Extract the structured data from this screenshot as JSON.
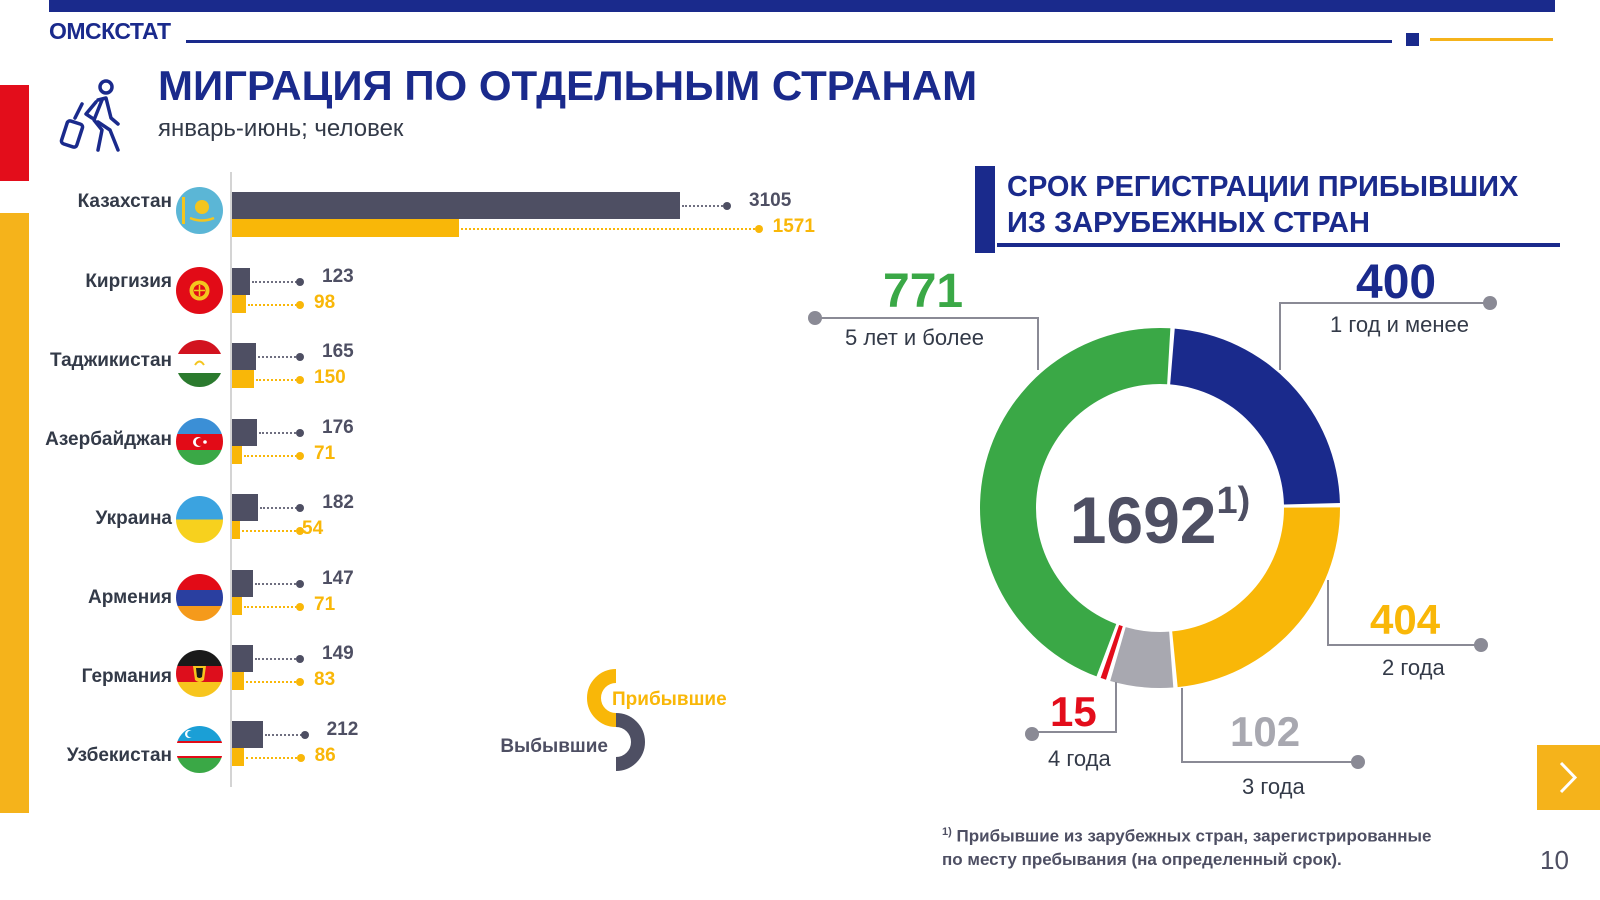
{
  "header": {
    "org_name": "ОМСКСТАТ",
    "title": "МИГРАЦИЯ ПО ОТДЕЛЬНЫМ СТРАНАМ",
    "subtitle": "январь-июнь; человек"
  },
  "colors": {
    "brand_blue": "#1a2a8c",
    "accent_red": "#e30d1b",
    "accent_gold": "#f5b31b",
    "departed": "#4e4f63",
    "arrived": "#f9b708",
    "term_green": "#3aa846",
    "term_grey": "#a8a8b0"
  },
  "icons": [
    "traveler-icon",
    "chevron-right-icon"
  ],
  "chart_data": [
    {
      "type": "bar",
      "orientation": "horizontal",
      "categories": [
        "Казахстан",
        "Киргизия",
        "Таджикистан",
        "Азербайджан",
        "Украина",
        "Армения",
        "Германия",
        "Узбекистан"
      ],
      "series": [
        {
          "name": "Выбывшие",
          "values": [
            3105,
            123,
            165,
            176,
            182,
            147,
            149,
            212
          ]
        },
        {
          "name": "Прибывшие",
          "values": [
            1571,
            98,
            150,
            71,
            54,
            71,
            83,
            86
          ]
        }
      ],
      "value_labels": {
        "departed": [
          "3105",
          "123",
          "165",
          "176",
          "182",
          "147",
          "149",
          "212"
        ],
        "arrived": [
          "1571",
          "98",
          "150",
          "71",
          "54",
          "71",
          "83",
          "86"
        ]
      },
      "legend": {
        "arrived": "Прибывшие",
        "departed": "Выбывшие",
        "position": "bottom-right"
      },
      "xlim": [
        0,
        3105
      ]
    },
    {
      "type": "pie",
      "style": "donut",
      "title": "СРОК РЕГИСТРАЦИИ ПРИБЫВШИХ ИЗ ЗАРУБЕЖНЫХ СТРАН",
      "total": "1692",
      "total_note": "1)",
      "start_angle_deg": 4,
      "slices": [
        {
          "label": "1 год и менее",
          "value": 400,
          "value_text": "400",
          "color": "#1a2a8c"
        },
        {
          "label": "2 года",
          "value": 404,
          "value_text": "404",
          "color": "#f9b708"
        },
        {
          "label": "3 года",
          "value": 102,
          "value_text": "102",
          "color": "#a8a8b0"
        },
        {
          "label": "4 года",
          "value": 15,
          "value_text": "15",
          "color": "#e30d1b"
        },
        {
          "label": "5 лет и более",
          "value": 771,
          "value_text": "771",
          "color": "#3aa846"
        }
      ]
    }
  ],
  "footnote": {
    "mark": "1)",
    "line1": "Прибывшие из зарубежных стран, зарегистрированные",
    "line2": "по месту пребывания (на определенный срок)."
  },
  "page_number": "10"
}
